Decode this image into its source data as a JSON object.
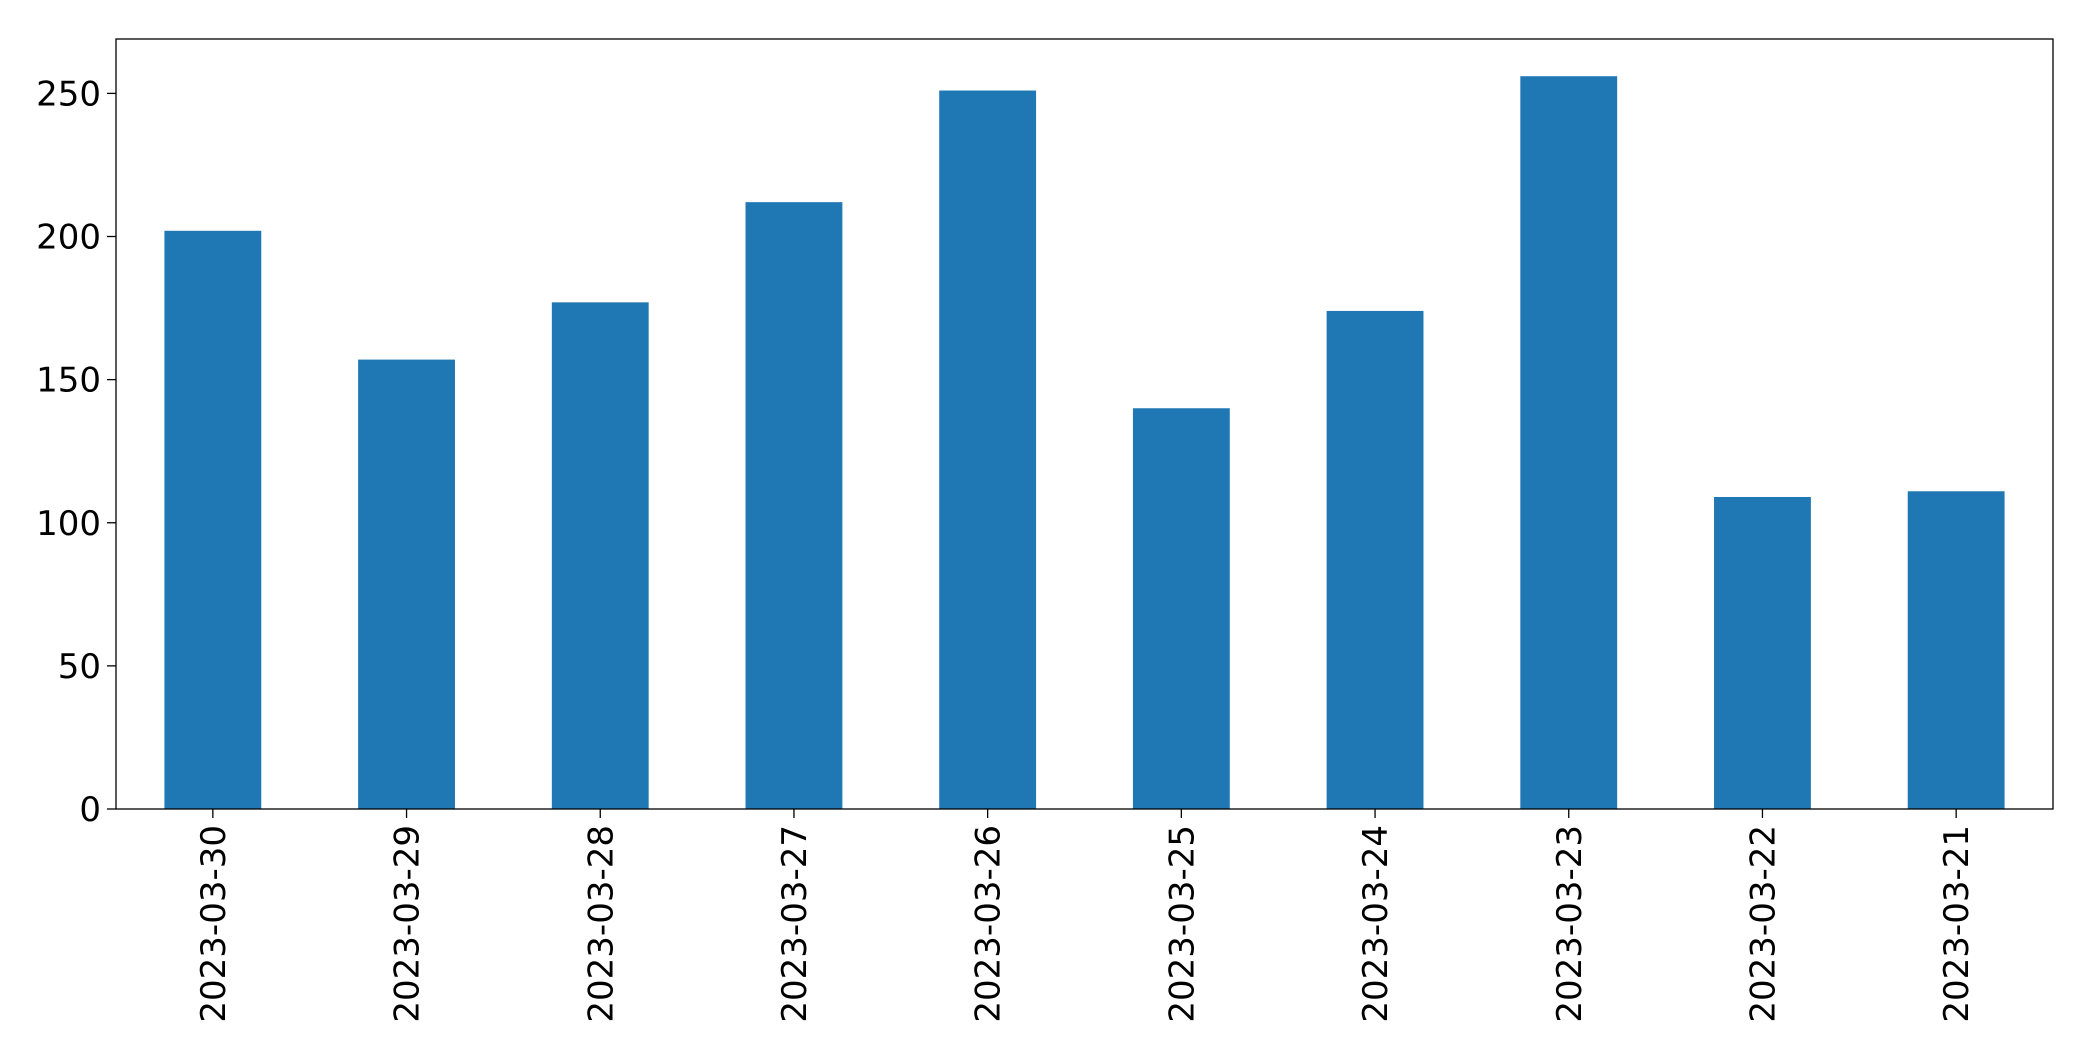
{
  "chart_data": {
    "type": "bar",
    "categories": [
      "2023-03-30",
      "2023-03-29",
      "2023-03-28",
      "2023-03-27",
      "2023-03-26",
      "2023-03-25",
      "2023-03-24",
      "2023-03-23",
      "2023-03-22",
      "2023-03-21"
    ],
    "values": [
      202,
      157,
      177,
      212,
      251,
      140,
      174,
      256,
      109,
      111
    ],
    "color": "#1f77b4",
    "ylim": [
      0,
      269
    ],
    "yticks": [
      0,
      50,
      100,
      150,
      200,
      250
    ],
    "grid": false
  }
}
